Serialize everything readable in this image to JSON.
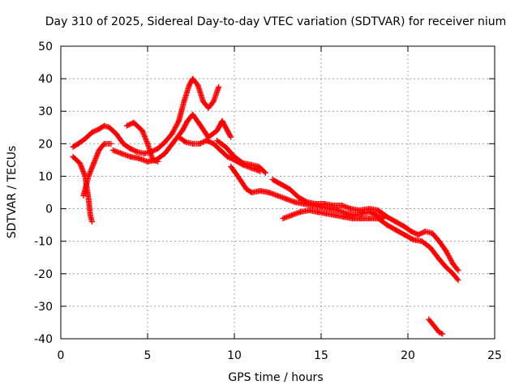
{
  "chart_data": {
    "type": "scatter",
    "title": "Day 310 of 2025, Sidereal Day-to-day VTEC variation (SDTVAR) for receiver nium",
    "xlabel": "GPS time / hours",
    "ylabel": "SDTVAR / TECUs",
    "xlim": [
      0,
      25
    ],
    "ylim": [
      -40,
      50
    ],
    "xticks": [
      "0",
      "5",
      "10",
      "15",
      "20",
      "25"
    ],
    "yticks": [
      "-40",
      "-30",
      "-20",
      "-10",
      "0",
      "10",
      "20",
      "30",
      "40",
      "50"
    ],
    "grid": true,
    "marker": "+",
    "series": [
      {
        "name": "SDTVAR",
        "color": "#ff0000",
        "segments": [
          [
            [
              0.7,
              19
            ],
            [
              1.0,
              20
            ],
            [
              1.4,
              21.5
            ],
            [
              1.8,
              23.5
            ],
            [
              2.2,
              24.5
            ],
            [
              2.5,
              25.5
            ],
            [
              2.8,
              25
            ],
            [
              3.2,
              23
            ],
            [
              3.6,
              20
            ],
            [
              4.0,
              18.5
            ],
            [
              4.4,
              17.5
            ],
            [
              4.8,
              17
            ],
            [
              5.2,
              17.5
            ],
            [
              5.6,
              18.5
            ],
            [
              6.0,
              20.5
            ],
            [
              6.4,
              23
            ],
            [
              6.8,
              27
            ],
            [
              7.1,
              33
            ],
            [
              7.4,
              38
            ],
            [
              7.6,
              40
            ],
            [
              7.9,
              38
            ],
            [
              8.2,
              33
            ],
            [
              8.5,
              31
            ],
            [
              8.8,
              33
            ],
            [
              9.1,
              37.5
            ]
          ],
          [
            [
              0.7,
              16
            ],
            [
              1.1,
              14
            ],
            [
              1.4,
              10
            ],
            [
              1.6,
              3
            ],
            [
              1.7,
              -2
            ],
            [
              1.8,
              -4
            ]
          ],
          [
            [
              1.3,
              4
            ],
            [
              1.6,
              10
            ],
            [
              1.9,
              14
            ],
            [
              2.2,
              18
            ],
            [
              2.5,
              20
            ],
            [
              2.9,
              20
            ]
          ],
          [
            [
              3.0,
              18
            ],
            [
              3.5,
              17
            ],
            [
              4.0,
              16
            ],
            [
              4.5,
              15.5
            ],
            [
              5.0,
              14.5
            ],
            [
              5.5,
              15
            ],
            [
              6.0,
              17
            ],
            [
              6.5,
              20.5
            ],
            [
              7.0,
              24
            ],
            [
              7.3,
              27
            ],
            [
              7.6,
              29
            ],
            [
              8.0,
              26
            ],
            [
              8.5,
              22
            ],
            [
              9.0,
              24
            ],
            [
              9.3,
              27
            ],
            [
              9.6,
              24
            ],
            [
              9.8,
              22
            ]
          ],
          [
            [
              3.8,
              25.5
            ],
            [
              4.2,
              26.5
            ],
            [
              4.7,
              24
            ],
            [
              5.0,
              20
            ],
            [
              5.3,
              15
            ],
            [
              5.6,
              14.5
            ]
          ],
          [
            [
              6.8,
              22
            ],
            [
              7.2,
              20.5
            ],
            [
              7.6,
              20
            ],
            [
              8.0,
              20
            ],
            [
              8.4,
              21
            ],
            [
              8.8,
              20
            ],
            [
              9.2,
              18
            ],
            [
              9.6,
              16
            ],
            [
              10.0,
              15
            ],
            [
              10.5,
              13.5
            ],
            [
              11.0,
              12.5
            ],
            [
              11.5,
              11.5
            ]
          ],
          [
            [
              9.8,
              13
            ],
            [
              10.2,
              10
            ],
            [
              10.7,
              6
            ],
            [
              11.0,
              5
            ],
            [
              11.5,
              5.5
            ],
            [
              12.0,
              5
            ],
            [
              12.5,
              4
            ],
            [
              13.0,
              3
            ],
            [
              13.5,
              2
            ],
            [
              14.0,
              1.5
            ],
            [
              14.5,
              1
            ],
            [
              15.0,
              0.5
            ],
            [
              15.5,
              0
            ],
            [
              16.0,
              -0.5
            ],
            [
              16.5,
              -1.5
            ],
            [
              17.0,
              -2
            ]
          ],
          [
            [
              9.0,
              21
            ],
            [
              9.5,
              19
            ],
            [
              10.0,
              16
            ],
            [
              10.5,
              14
            ],
            [
              11.0,
              13.5
            ],
            [
              11.4,
              13
            ],
            [
              11.8,
              11
            ]
          ],
          [
            [
              12.2,
              9
            ],
            [
              12.7,
              7.5
            ],
            [
              13.2,
              6
            ],
            [
              13.7,
              3.5
            ],
            [
              14.2,
              2
            ],
            [
              14.7,
              1.5
            ],
            [
              15.2,
              1.5
            ],
            [
              15.7,
              1
            ],
            [
              16.2,
              1
            ],
            [
              16.7,
              0
            ],
            [
              17.2,
              -0.5
            ],
            [
              17.8,
              0
            ],
            [
              18.3,
              -0.5
            ],
            [
              18.8,
              -2.5
            ],
            [
              19.3,
              -4
            ],
            [
              19.8,
              -5.5
            ],
            [
              20.2,
              -7
            ],
            [
              20.6,
              -8
            ],
            [
              21.0,
              -7
            ],
            [
              21.4,
              -7.5
            ],
            [
              21.8,
              -10
            ],
            [
              22.2,
              -13
            ],
            [
              22.6,
              -17
            ],
            [
              22.9,
              -19
            ]
          ],
          [
            [
              12.8,
              -3
            ],
            [
              13.3,
              -2
            ],
            [
              13.8,
              -1
            ],
            [
              14.3,
              -0.5
            ],
            [
              14.8,
              -1
            ],
            [
              15.3,
              -1.5
            ],
            [
              15.8,
              -2
            ],
            [
              16.3,
              -2.5
            ],
            [
              16.8,
              -3
            ],
            [
              17.3,
              -3
            ],
            [
              17.8,
              -3
            ],
            [
              18.3,
              -3
            ],
            [
              18.8,
              -5
            ],
            [
              19.3,
              -6.5
            ],
            [
              19.8,
              -8
            ],
            [
              20.3,
              -9.5
            ],
            [
              20.8,
              -10
            ],
            [
              21.3,
              -12
            ],
            [
              21.8,
              -15.5
            ],
            [
              22.2,
              -18
            ],
            [
              22.6,
              -20
            ],
            [
              22.9,
              -22
            ]
          ],
          [
            [
              17.0,
              -2
            ],
            [
              17.4,
              -1.5
            ],
            [
              17.8,
              -1
            ],
            [
              18.2,
              -2
            ],
            [
              18.6,
              -3
            ]
          ],
          [
            [
              21.2,
              -34
            ],
            [
              21.5,
              -36
            ],
            [
              21.8,
              -38
            ],
            [
              22.0,
              -38.5
            ]
          ]
        ]
      }
    ]
  }
}
